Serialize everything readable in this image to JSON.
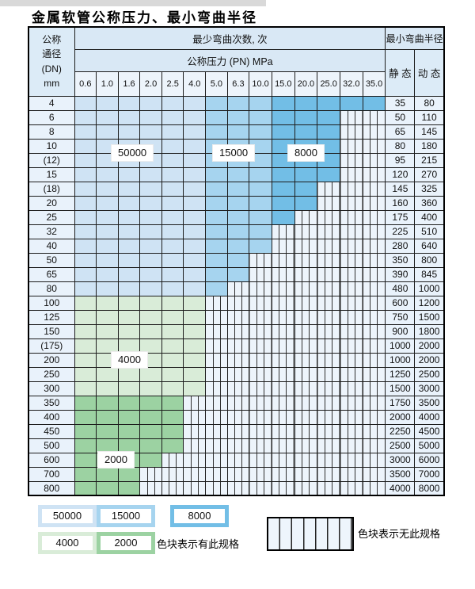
{
  "page_title": "金属软管公称压力、最小弯曲半径",
  "table": {
    "dn_header_lines": [
      "公称",
      "通径",
      "(DN)",
      "mm"
    ],
    "bend_count_header": "最少弯曲次数, 次",
    "pressure_header": "公称压力 (PN) MPa",
    "radius_header": "最小弯曲半径",
    "static_header": "静 态",
    "dynamic_header": "动 态",
    "pn_columns": [
      "0.6",
      "1.0",
      "1.6",
      "2.0",
      "2.5",
      "4.0",
      "5.0",
      "6.3",
      "10.0",
      "15.0",
      "20.0",
      "25.0",
      "32.0",
      "35.0"
    ],
    "rows": [
      {
        "dn": "4",
        "static": "35",
        "dynamic": "80",
        "fills": [
          {
            "grade": "c50000",
            "cols": 6
          },
          {
            "grade": "c15000",
            "cols": 3
          },
          {
            "grade": "c8000",
            "cols": 5
          }
        ]
      },
      {
        "dn": "6",
        "static": "50",
        "dynamic": "110",
        "fills": [
          {
            "grade": "c50000",
            "cols": 6
          },
          {
            "grade": "c15000",
            "cols": 3
          },
          {
            "grade": "c8000",
            "cols": 3
          }
        ]
      },
      {
        "dn": "8",
        "static": "65",
        "dynamic": "145",
        "fills": [
          {
            "grade": "c50000",
            "cols": 6
          },
          {
            "grade": "c15000",
            "cols": 3
          },
          {
            "grade": "c8000",
            "cols": 3
          }
        ]
      },
      {
        "dn": "10",
        "static": "80",
        "dynamic": "180",
        "fills": [
          {
            "grade": "c50000",
            "cols": 6
          },
          {
            "grade": "c15000",
            "cols": 3
          },
          {
            "grade": "c8000",
            "cols": 3
          }
        ]
      },
      {
        "dn": "(12)",
        "static": "95",
        "dynamic": "215",
        "fills": [
          {
            "grade": "c50000",
            "cols": 6
          },
          {
            "grade": "c15000",
            "cols": 3
          },
          {
            "grade": "c8000",
            "cols": 3
          }
        ]
      },
      {
        "dn": "15",
        "static": "120",
        "dynamic": "270",
        "fills": [
          {
            "grade": "c50000",
            "cols": 6
          },
          {
            "grade": "c15000",
            "cols": 3
          },
          {
            "grade": "c8000",
            "cols": 3
          }
        ]
      },
      {
        "dn": "(18)",
        "static": "145",
        "dynamic": "325",
        "fills": [
          {
            "grade": "c50000",
            "cols": 6
          },
          {
            "grade": "c15000",
            "cols": 3
          },
          {
            "grade": "c8000",
            "cols": 2
          }
        ]
      },
      {
        "dn": "20",
        "static": "160",
        "dynamic": "360",
        "fills": [
          {
            "grade": "c50000",
            "cols": 6
          },
          {
            "grade": "c15000",
            "cols": 3
          },
          {
            "grade": "c8000",
            "cols": 2
          }
        ]
      },
      {
        "dn": "25",
        "static": "175",
        "dynamic": "400",
        "fills": [
          {
            "grade": "c50000",
            "cols": 6
          },
          {
            "grade": "c15000",
            "cols": 3
          },
          {
            "grade": "c8000",
            "cols": 1
          }
        ]
      },
      {
        "dn": "32",
        "static": "225",
        "dynamic": "510",
        "fills": [
          {
            "grade": "c50000",
            "cols": 6
          },
          {
            "grade": "c15000",
            "cols": 3
          }
        ]
      },
      {
        "dn": "40",
        "static": "280",
        "dynamic": "640",
        "fills": [
          {
            "grade": "c50000",
            "cols": 6
          },
          {
            "grade": "c15000",
            "cols": 3
          }
        ]
      },
      {
        "dn": "50",
        "static": "350",
        "dynamic": "800",
        "fills": [
          {
            "grade": "c50000",
            "cols": 6
          },
          {
            "grade": "c15000",
            "cols": 2
          }
        ]
      },
      {
        "dn": "65",
        "static": "390",
        "dynamic": "845",
        "fills": [
          {
            "grade": "c50000",
            "cols": 6
          },
          {
            "grade": "c15000",
            "cols": 2
          }
        ]
      },
      {
        "dn": "80",
        "static": "480",
        "dynamic": "1000",
        "fills": [
          {
            "grade": "c50000",
            "cols": 6
          },
          {
            "grade": "c15000",
            "cols": 1
          }
        ]
      },
      {
        "dn": "100",
        "static": "600",
        "dynamic": "1200",
        "fills": [
          {
            "grade": "c4000",
            "cols": 6
          }
        ]
      },
      {
        "dn": "125",
        "static": "750",
        "dynamic": "1500",
        "fills": [
          {
            "grade": "c4000",
            "cols": 6
          }
        ]
      },
      {
        "dn": "150",
        "static": "900",
        "dynamic": "1800",
        "fills": [
          {
            "grade": "c4000",
            "cols": 6
          }
        ]
      },
      {
        "dn": "(175)",
        "static": "1000",
        "dynamic": "2000",
        "fills": [
          {
            "grade": "c4000",
            "cols": 6
          }
        ]
      },
      {
        "dn": "200",
        "static": "1000",
        "dynamic": "2000",
        "fills": [
          {
            "grade": "c4000",
            "cols": 6
          }
        ]
      },
      {
        "dn": "250",
        "static": "1250",
        "dynamic": "2500",
        "fills": [
          {
            "grade": "c4000",
            "cols": 6
          }
        ]
      },
      {
        "dn": "300",
        "static": "1500",
        "dynamic": "3000",
        "fills": [
          {
            "grade": "c4000",
            "cols": 6
          }
        ]
      },
      {
        "dn": "350",
        "static": "1750",
        "dynamic": "3500",
        "fills": [
          {
            "grade": "c2000",
            "cols": 5
          }
        ]
      },
      {
        "dn": "400",
        "static": "2000",
        "dynamic": "4000",
        "fills": [
          {
            "grade": "c2000",
            "cols": 5
          }
        ]
      },
      {
        "dn": "450",
        "static": "2250",
        "dynamic": "4500",
        "fills": [
          {
            "grade": "c2000",
            "cols": 5
          }
        ]
      },
      {
        "dn": "500",
        "static": "2500",
        "dynamic": "5000",
        "fills": [
          {
            "grade": "c2000",
            "cols": 5
          }
        ]
      },
      {
        "dn": "600",
        "static": "3000",
        "dynamic": "6000",
        "fills": [
          {
            "grade": "c2000",
            "cols": 4
          }
        ]
      },
      {
        "dn": "700",
        "static": "3500",
        "dynamic": "7000",
        "fills": [
          {
            "grade": "c2000",
            "cols": 3
          }
        ]
      },
      {
        "dn": "800",
        "static": "4000",
        "dynamic": "8000",
        "fills": [
          {
            "grade": "c2000",
            "cols": 3
          }
        ]
      }
    ]
  },
  "overlays": [
    {
      "text": "50000"
    },
    {
      "text": "15000"
    },
    {
      "text": "8000"
    },
    {
      "text": "4000"
    },
    {
      "text": "2000"
    }
  ],
  "legend": {
    "swatches": [
      {
        "label": "50000",
        "grade": "c50000"
      },
      {
        "label": "15000",
        "grade": "c15000"
      },
      {
        "label": "8000",
        "grade": "c8000"
      },
      {
        "label": "4000",
        "grade": "c4000"
      },
      {
        "label": "2000",
        "grade": "c2000"
      }
    ],
    "has_spec_text": "色块表示有此规格",
    "no_spec_text": "色块表示无此规格"
  },
  "colors": {
    "c50000": "#cfe3f4",
    "c15000": "#a6d4ef",
    "c8000": "#72bee6",
    "c4000": "#d9ecd8",
    "c2000": "#9cd2a2",
    "hatch_bg": "#edf4fb"
  }
}
